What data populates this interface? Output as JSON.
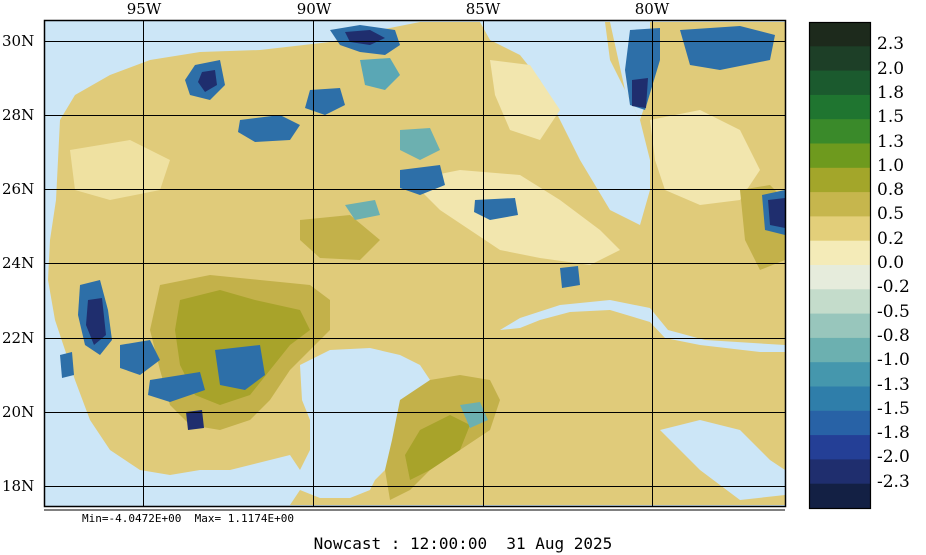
{
  "map": {
    "lon_labels": [
      "95W",
      "90W",
      "85W",
      "80W"
    ],
    "lat_labels": [
      "30N",
      "28N",
      "26N",
      "24N",
      "22N",
      "20N",
      "18N"
    ]
  },
  "colorbar": {
    "labels": [
      "2.3",
      "2.0",
      "1.8",
      "1.5",
      "1.3",
      "1.0",
      "0.8",
      "0.5",
      "0.2",
      "0.0",
      "-0.2",
      "-0.5",
      "-0.8",
      "-1.0",
      "-1.3",
      "-1.5",
      "-1.8",
      "-2.0",
      "-2.3"
    ],
    "colors": [
      "#1d2a1c",
      "#1d3f27",
      "#1b5a2e",
      "#1f7530",
      "#3a8a2a",
      "#6e9a1e",
      "#a3a62a",
      "#c6b64d",
      "#e3cf7a",
      "#f4ebb8",
      "#e6ecdc",
      "#c4dccb",
      "#98c6bc",
      "#6cb0b0",
      "#4597ad",
      "#2f7eaa",
      "#2862a6",
      "#243f96",
      "#1f2e6e",
      "#132044"
    ]
  },
  "stats": {
    "min_label": "Min=",
    "min_value": "-4.0472E+00",
    "max_label": "Max=",
    "max_value": "1.1174E+00"
  },
  "footer": {
    "mode": "Nowcast",
    "time": "12:00:00",
    "date": "31 Aug 2025"
  },
  "colors": {
    "water": "#cce6f7",
    "land_base": "#e1cc7c"
  }
}
